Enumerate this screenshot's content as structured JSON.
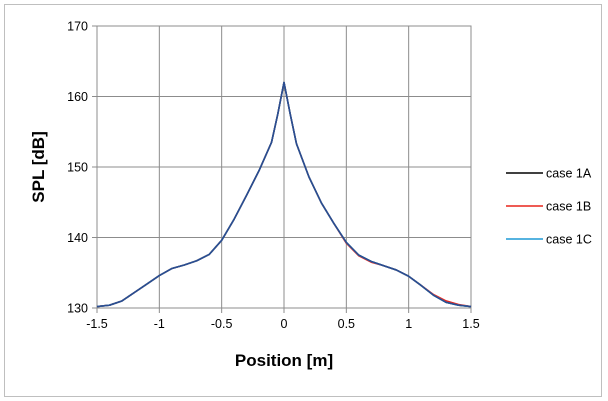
{
  "chart_data": {
    "type": "line",
    "xlabel": "Position [m]",
    "ylabel": "SPL [dB]",
    "xlim": [
      -1.5,
      1.5
    ],
    "ylim": [
      130,
      170
    ],
    "x_ticks": [
      "-1.5",
      "-1",
      "-0.5",
      "0",
      "0.5",
      "1",
      "1.5"
    ],
    "y_ticks": [
      "130",
      "140",
      "150",
      "160",
      "170"
    ],
    "x_tick_values": [
      -1.5,
      -1,
      -0.5,
      0,
      0.5,
      1,
      1.5
    ],
    "y_tick_values": [
      130,
      140,
      150,
      160,
      170
    ],
    "grid": true,
    "legend_position": "right",
    "x": [
      -1.5,
      -1.4,
      -1.3,
      -1.2,
      -1.1,
      -1.0,
      -0.9,
      -0.8,
      -0.7,
      -0.6,
      -0.5,
      -0.4,
      -0.3,
      -0.2,
      -0.1,
      -0.05,
      0,
      0.05,
      0.1,
      0.2,
      0.3,
      0.4,
      0.5,
      0.6,
      0.7,
      0.8,
      0.9,
      1.0,
      1.1,
      1.2,
      1.3,
      1.4,
      1.5
    ],
    "series": [
      {
        "name": "case 1A",
        "color": "#000000",
        "values": [
          130.2,
          130.4,
          131.0,
          132.2,
          133.4,
          134.6,
          135.6,
          136.1,
          136.7,
          137.6,
          139.6,
          142.6,
          146.0,
          149.5,
          153.5,
          157.5,
          162.0,
          157.5,
          153.3,
          148.6,
          144.9,
          142.0,
          139.3,
          137.5,
          136.6,
          136.0,
          135.4,
          134.5,
          133.2,
          131.8,
          130.8,
          130.4,
          130.2
        ]
      },
      {
        "name": "case 1B",
        "color": "#e8251b",
        "values": [
          130.2,
          130.4,
          131.0,
          132.2,
          133.4,
          134.6,
          135.6,
          136.1,
          136.7,
          137.6,
          139.6,
          142.6,
          146.0,
          149.5,
          153.5,
          157.5,
          162.0,
          157.5,
          153.3,
          148.6,
          144.9,
          142.0,
          139.2,
          137.4,
          136.5,
          136.0,
          135.4,
          134.5,
          133.2,
          131.9,
          131.0,
          130.5,
          130.2
        ]
      },
      {
        "name": "case 1C",
        "color": "#1f9ad6",
        "values": [
          130.2,
          130.4,
          131.0,
          132.2,
          133.4,
          134.6,
          135.6,
          136.1,
          136.7,
          137.6,
          139.6,
          142.6,
          146.0,
          149.5,
          153.5,
          157.5,
          162.0,
          157.5,
          153.3,
          148.6,
          144.9,
          142.0,
          139.3,
          137.5,
          136.6,
          136.0,
          135.4,
          134.5,
          133.2,
          131.8,
          130.8,
          130.4,
          130.2
        ]
      }
    ],
    "overlay_color": "#2b4a8f"
  }
}
